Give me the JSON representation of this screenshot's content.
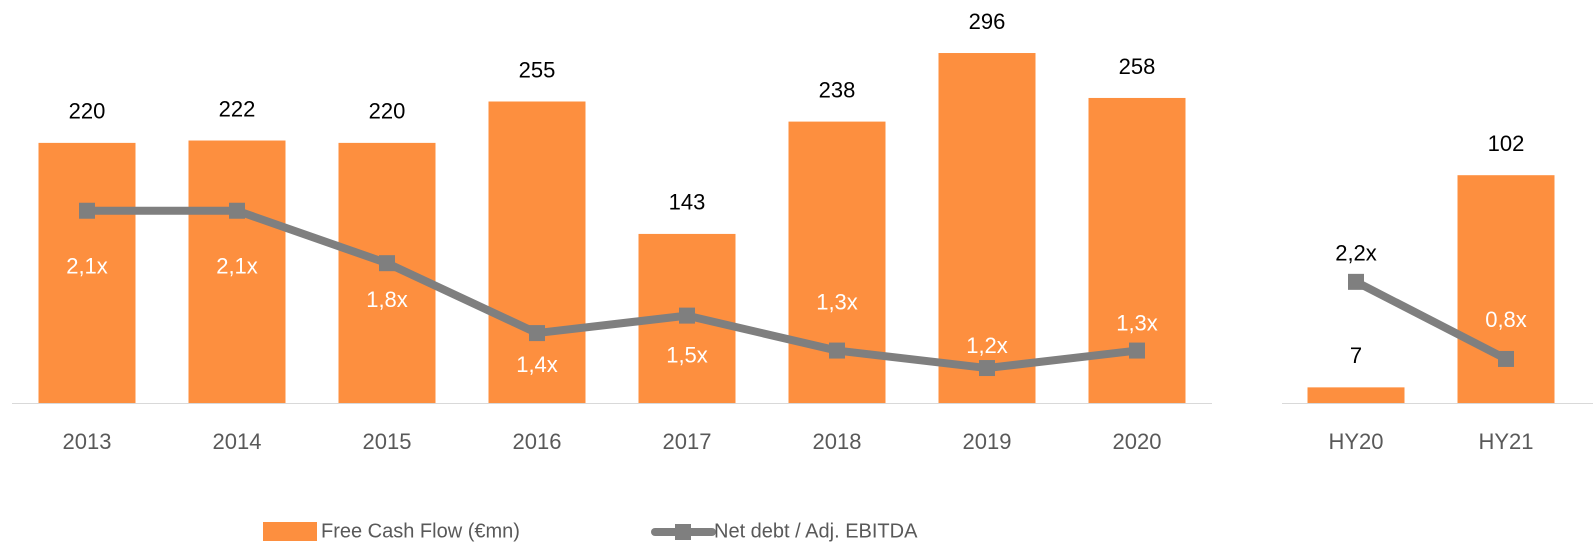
{
  "chart_data": [
    {
      "type": "bar-line",
      "categories": [
        "2013",
        "2014",
        "2015",
        "2016",
        "2017",
        "2018",
        "2019",
        "2020"
      ],
      "ylim": [
        0,
        340
      ],
      "y2lim": [
        1,
        3.3
      ],
      "series": [
        {
          "name": "Free Cash Flow (€mn)",
          "color": "#fd8f3f",
          "type": "bar",
          "values": [
            220,
            222,
            220,
            255,
            143,
            238,
            296,
            258
          ]
        },
        {
          "name": "Net debt / Adj. EBITDA",
          "color": "#7f7f7f",
          "type": "line",
          "axis": "y2",
          "values": [
            2.1,
            2.1,
            1.8,
            1.4,
            1.5,
            1.3,
            1.2,
            1.3
          ],
          "value_labels": [
            "2,1x",
            "2,1x",
            "1,8x",
            "1,4x",
            "1,5x",
            "1,3x",
            "1,2x",
            "1,3x"
          ]
        }
      ]
    },
    {
      "type": "bar-line",
      "categories": [
        "HY20",
        "HY21"
      ],
      "ylim": [
        0,
        180
      ],
      "y2lim": [
        0,
        7.3
      ],
      "series": [
        {
          "color": "#fd8f3f",
          "type": "bar",
          "values": [
            7,
            102
          ]
        },
        {
          "color": "#7f7f7f",
          "type": "line",
          "axis": "y2",
          "values": [
            2.2,
            0.8
          ],
          "value_labels": [
            "2,2x",
            "0,8x"
          ]
        }
      ]
    }
  ]
}
